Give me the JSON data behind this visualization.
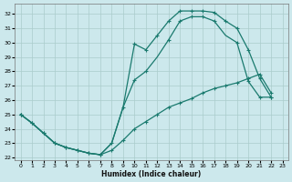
{
  "xlabel": "Humidex (Indice chaleur)",
  "xlim": [
    -0.5,
    23.5
  ],
  "ylim": [
    21.8,
    32.7
  ],
  "yticks": [
    22,
    23,
    24,
    25,
    26,
    27,
    28,
    29,
    30,
    31,
    32
  ],
  "xticks": [
    0,
    1,
    2,
    3,
    4,
    5,
    6,
    7,
    8,
    9,
    10,
    11,
    12,
    13,
    14,
    15,
    16,
    17,
    18,
    19,
    20,
    21,
    22,
    23
  ],
  "bg_color": "#cce8ec",
  "grid_color": "#aacccc",
  "line_color": "#1a7a6e",
  "line1_x": [
    0,
    1,
    2,
    3,
    4,
    5,
    6,
    7,
    8,
    9,
    10,
    11,
    12,
    13,
    14,
    15,
    16,
    17,
    18,
    19,
    20,
    21,
    22
  ],
  "line1_y": [
    25.0,
    24.4,
    23.7,
    23.0,
    22.7,
    22.5,
    22.3,
    22.2,
    23.0,
    25.5,
    29.9,
    29.5,
    30.5,
    31.5,
    32.2,
    32.2,
    32.2,
    32.1,
    31.5,
    31.0,
    29.5,
    27.5,
    26.2
  ],
  "line2_x": [
    0,
    1,
    2,
    3,
    4,
    5,
    6,
    7,
    8,
    9,
    10,
    11,
    12,
    13,
    14,
    15,
    16,
    17,
    18,
    19,
    20,
    21,
    22
  ],
  "line2_y": [
    25.0,
    24.4,
    23.7,
    23.0,
    22.7,
    22.5,
    22.3,
    22.2,
    23.0,
    25.5,
    27.4,
    28.0,
    29.0,
    30.2,
    31.5,
    31.8,
    31.8,
    31.5,
    30.5,
    30.0,
    27.3,
    26.2,
    26.2
  ],
  "line3_x": [
    0,
    1,
    2,
    3,
    4,
    5,
    6,
    7,
    8,
    9,
    10,
    11,
    12,
    13,
    14,
    15,
    16,
    17,
    18,
    19,
    20,
    21,
    22
  ],
  "line3_y": [
    25.0,
    24.4,
    23.7,
    23.0,
    22.7,
    22.5,
    22.3,
    22.2,
    22.5,
    23.2,
    24.0,
    24.5,
    25.0,
    25.5,
    25.8,
    26.1,
    26.5,
    26.8,
    27.0,
    27.2,
    27.5,
    27.8,
    26.5
  ],
  "marker_line1_x": [
    0,
    1,
    2,
    3,
    4,
    5,
    6,
    7,
    9,
    10,
    11,
    12,
    13,
    14,
    15,
    16,
    17,
    18,
    19,
    20,
    21,
    22
  ],
  "marker_line1_y": [
    25.0,
    24.4,
    23.7,
    23.0,
    22.7,
    22.5,
    22.3,
    22.2,
    25.5,
    29.9,
    29.5,
    30.5,
    31.5,
    32.2,
    32.2,
    32.2,
    32.1,
    31.5,
    31.0,
    29.5,
    27.5,
    26.2
  ],
  "marker_line2_x": [
    0,
    1,
    2,
    3,
    4,
    5,
    6,
    7,
    8,
    10,
    11,
    13,
    14,
    15,
    16,
    17,
    19,
    20,
    21,
    22
  ],
  "marker_line2_y": [
    25.0,
    24.4,
    23.7,
    23.0,
    22.7,
    22.5,
    22.3,
    22.2,
    23.0,
    27.4,
    28.0,
    30.2,
    31.5,
    31.8,
    31.8,
    31.5,
    30.0,
    27.3,
    26.2,
    26.2
  ],
  "marker_line3_x": [
    0,
    8,
    9,
    10,
    11,
    12,
    13,
    14,
    15,
    16,
    17,
    18,
    19,
    20,
    21,
    22
  ],
  "marker_line3_y": [
    25.0,
    22.5,
    23.2,
    24.0,
    24.5,
    25.0,
    25.5,
    25.8,
    26.1,
    26.5,
    26.8,
    27.0,
    27.2,
    27.5,
    27.8,
    26.5
  ],
  "markersize": 3,
  "linewidth": 0.9
}
